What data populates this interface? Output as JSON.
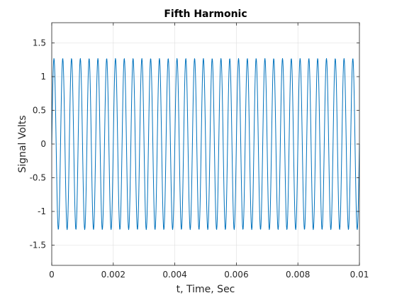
{
  "chart_data": {
    "type": "line",
    "title": "Fifth Harmonic",
    "xlabel": "t, Time, Sec",
    "ylabel": "Signal Volts",
    "xlim": [
      0,
      0.01
    ],
    "ylim": [
      -1.8,
      1.8
    ],
    "xticks": [
      0,
      0.002,
      0.004,
      0.006,
      0.008,
      0.01
    ],
    "xtick_labels": [
      "0",
      "0.002",
      "0.004",
      "0.006",
      "0.008",
      "0.01"
    ],
    "yticks": [
      1.5,
      1,
      0.5,
      0,
      -0.5,
      -1,
      -1.5
    ],
    "ytick_labels": [
      "1.5",
      "1",
      "0.5",
      "0",
      "-0.5",
      "-1",
      "-1.5"
    ],
    "grid": true,
    "series": [
      {
        "amplitude": 1.27,
        "frequency_hz": 3500,
        "phase": 0,
        "sample_step": 1e-05,
        "color": "#0072BD"
      }
    ]
  }
}
